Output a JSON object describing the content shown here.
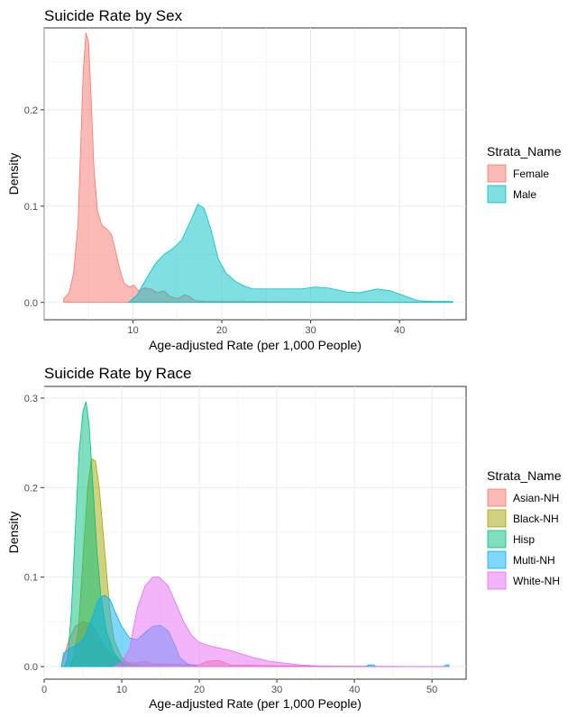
{
  "chart_data": [
    {
      "type": "area",
      "title": "Suicide Rate by Sex",
      "xlabel": "Age-adjusted Rate (per 1,000 People)",
      "ylabel": "Density",
      "xlim": [
        0,
        47.5
      ],
      "ylim": [
        -0.018,
        0.285
      ],
      "x_ticks": [
        10,
        20,
        30,
        40
      ],
      "y_ticks": [
        0.0,
        0.1,
        0.2
      ],
      "y_tick_labels": [
        "0.0",
        "0.1",
        "0.2"
      ],
      "grid": true,
      "legend": {
        "title": "Strata_Name",
        "position": "right"
      },
      "series": [
        {
          "name": "Female",
          "color": "#F8766D",
          "points": [
            [
              2.2,
              0
            ],
            [
              2.2,
              0.004
            ],
            [
              2.8,
              0.01
            ],
            [
              3.3,
              0.03
            ],
            [
              3.8,
              0.08
            ],
            [
              4.1,
              0.16
            ],
            [
              4.4,
              0.24
            ],
            [
              4.7,
              0.28
            ],
            [
              5.0,
              0.27
            ],
            [
              5.3,
              0.21
            ],
            [
              5.6,
              0.14
            ],
            [
              6.0,
              0.095
            ],
            [
              6.5,
              0.08
            ],
            [
              7.1,
              0.076
            ],
            [
              7.6,
              0.07
            ],
            [
              8.0,
              0.055
            ],
            [
              8.5,
              0.035
            ],
            [
              9.0,
              0.02
            ],
            [
              9.6,
              0.016
            ],
            [
              10.1,
              0.018
            ],
            [
              10.6,
              0.012
            ],
            [
              11.3,
              0.015
            ],
            [
              12.0,
              0.014
            ],
            [
              12.8,
              0.01
            ],
            [
              13.5,
              0.012
            ],
            [
              14.2,
              0.006
            ],
            [
              15.0,
              0.004
            ],
            [
              15.8,
              0.008
            ],
            [
              16.4,
              0.006
            ],
            [
              17.0,
              0.002
            ],
            [
              18.0,
              0.001
            ],
            [
              46.0,
              0
            ]
          ]
        },
        {
          "name": "Male",
          "color": "#00BFC4",
          "points": [
            [
              9.5,
              0
            ],
            [
              10.5,
              0.008
            ],
            [
              11.5,
              0.025
            ],
            [
              12.5,
              0.04
            ],
            [
              13.5,
              0.05
            ],
            [
              14.5,
              0.056
            ],
            [
              15.5,
              0.065
            ],
            [
              16.5,
              0.085
            ],
            [
              17.3,
              0.102
            ],
            [
              18.0,
              0.098
            ],
            [
              18.8,
              0.075
            ],
            [
              19.6,
              0.045
            ],
            [
              20.5,
              0.03
            ],
            [
              21.5,
              0.022
            ],
            [
              22.5,
              0.017
            ],
            [
              23.5,
              0.014
            ],
            [
              25.0,
              0.014
            ],
            [
              27.0,
              0.014
            ],
            [
              29.0,
              0.014
            ],
            [
              30.5,
              0.016
            ],
            [
              32.0,
              0.015
            ],
            [
              34.0,
              0.011
            ],
            [
              35.5,
              0.01
            ],
            [
              37.5,
              0.014
            ],
            [
              39.0,
              0.012
            ],
            [
              40.5,
              0.007
            ],
            [
              42.0,
              0.002
            ],
            [
              43.5,
              0.001
            ],
            [
              46.0,
              0.001
            ],
            [
              46.0,
              0
            ]
          ]
        }
      ]
    },
    {
      "type": "area",
      "title": "Suicide Rate by Race",
      "xlabel": "Age-adjusted Rate (per 1,000 People)",
      "ylabel": "Density",
      "xlim": [
        0,
        54.4
      ],
      "ylim": [
        -0.014,
        0.313
      ],
      "x_ticks": [
        0,
        10,
        20,
        30,
        40,
        50
      ],
      "y_ticks": [
        0.0,
        0.1,
        0.2,
        0.3
      ],
      "y_tick_labels": [
        "0.0",
        "0.1",
        "0.2",
        "0.3"
      ],
      "grid": true,
      "legend": {
        "title": "Strata_Name",
        "position": "right"
      },
      "series": [
        {
          "name": "Asian-NH",
          "color": "#F8766D",
          "points": [
            [
              2.2,
              0
            ],
            [
              2.5,
              0.01
            ],
            [
              3.2,
              0.03
            ],
            [
              4.0,
              0.045
            ],
            [
              5.0,
              0.05
            ],
            [
              6.0,
              0.048
            ],
            [
              7.0,
              0.035
            ],
            [
              8.0,
              0.02
            ],
            [
              9.0,
              0.01
            ],
            [
              10.0,
              0.005
            ],
            [
              12.0,
              0.004
            ],
            [
              13.0,
              0.006
            ],
            [
              14.0,
              0.003
            ],
            [
              20.0,
              0.002
            ],
            [
              21.0,
              0.006
            ],
            [
              22.5,
              0.007
            ],
            [
              24.0,
              0.002
            ],
            [
              30.0,
              0.001
            ],
            [
              52.0,
              0
            ]
          ]
        },
        {
          "name": "Black-NH",
          "color": "#A3A500",
          "points": [
            [
              3.3,
              0
            ],
            [
              3.8,
              0.01
            ],
            [
              4.4,
              0.04
            ],
            [
              5.0,
              0.12
            ],
            [
              5.6,
              0.2
            ],
            [
              6.1,
              0.232
            ],
            [
              6.6,
              0.23
            ],
            [
              7.1,
              0.2
            ],
            [
              7.6,
              0.15
            ],
            [
              8.0,
              0.11
            ],
            [
              8.5,
              0.06
            ],
            [
              9.0,
              0.03
            ],
            [
              10.0,
              0.01
            ],
            [
              11.0,
              0.003
            ],
            [
              13.0,
              0
            ]
          ]
        },
        {
          "name": "Hisp",
          "color": "#00BF7D",
          "points": [
            [
              2.6,
              0
            ],
            [
              3.0,
              0.008
            ],
            [
              3.5,
              0.06
            ],
            [
              4.0,
              0.15
            ],
            [
              4.5,
              0.24
            ],
            [
              5.0,
              0.285
            ],
            [
              5.4,
              0.296
            ],
            [
              5.8,
              0.27
            ],
            [
              6.3,
              0.2
            ],
            [
              6.8,
              0.13
            ],
            [
              7.3,
              0.08
            ],
            [
              8.0,
              0.04
            ],
            [
              9.0,
              0.015
            ],
            [
              10.0,
              0.005
            ],
            [
              11.0,
              0
            ]
          ]
        },
        {
          "name": "Multi-NH",
          "color": "#00B0F6",
          "points": [
            [
              2.2,
              0
            ],
            [
              2.5,
              0.015
            ],
            [
              3.2,
              0.02
            ],
            [
              4.0,
              0.023
            ],
            [
              5.0,
              0.03
            ],
            [
              6.0,
              0.05
            ],
            [
              7.0,
              0.075
            ],
            [
              7.8,
              0.08
            ],
            [
              8.5,
              0.075
            ],
            [
              9.2,
              0.06
            ],
            [
              10.0,
              0.045
            ],
            [
              11.0,
              0.032
            ],
            [
              12.0,
              0.03
            ],
            [
              13.0,
              0.038
            ],
            [
              14.0,
              0.045
            ],
            [
              15.0,
              0.046
            ],
            [
              16.0,
              0.04
            ],
            [
              16.8,
              0.025
            ],
            [
              17.5,
              0.01
            ],
            [
              18.5,
              0.003
            ],
            [
              20.0,
              0
            ],
            [
              41.5,
              0
            ],
            [
              41.8,
              0.002
            ],
            [
              42.5,
              0.002
            ],
            [
              42.8,
              0
            ],
            [
              51.5,
              0
            ],
            [
              51.8,
              0.002
            ],
            [
              52.2,
              0.002
            ],
            [
              52.2,
              0
            ]
          ]
        },
        {
          "name": "White-NH",
          "color": "#E76BF3",
          "points": [
            [
              9.0,
              0
            ],
            [
              10.0,
              0.005
            ],
            [
              11.0,
              0.02
            ],
            [
              12.0,
              0.065
            ],
            [
              13.0,
              0.09
            ],
            [
              14.0,
              0.1
            ],
            [
              14.8,
              0.1
            ],
            [
              16.0,
              0.09
            ],
            [
              17.0,
              0.07
            ],
            [
              18.0,
              0.05
            ],
            [
              19.0,
              0.035
            ],
            [
              20.0,
              0.027
            ],
            [
              21.0,
              0.024
            ],
            [
              22.0,
              0.022
            ],
            [
              23.0,
              0.02
            ],
            [
              24.0,
              0.018
            ],
            [
              25.5,
              0.014
            ],
            [
              27.0,
              0.01
            ],
            [
              29.0,
              0.006
            ],
            [
              31.0,
              0.004
            ],
            [
              33.0,
              0.002
            ],
            [
              35.0,
              0.001
            ],
            [
              37.0,
              0
            ],
            [
              52.0,
              0
            ]
          ]
        }
      ]
    }
  ]
}
